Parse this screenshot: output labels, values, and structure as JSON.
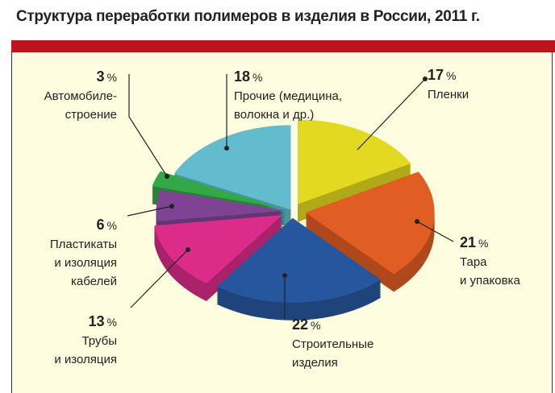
{
  "chart_data": {
    "type": "pie",
    "title": "Структура переработки полимеров в изделия в России, 2011 г.",
    "unit": "%",
    "slices": [
      {
        "label": [
          "Пленки"
        ],
        "value": 17,
        "color": "#e2d920"
      },
      {
        "label": [
          "Тара",
          "и упаковка"
        ],
        "value": 21,
        "color": "#e05e24"
      },
      {
        "label": [
          "Строительные",
          "изделия"
        ],
        "value": 22,
        "color": "#26579e"
      },
      {
        "label": [
          "Трубы",
          "и изоляция"
        ],
        "value": 13,
        "color": "#da2c88"
      },
      {
        "label": [
          "Пластикаты",
          "и изоляция",
          "кабелей"
        ],
        "value": 6,
        "color": "#7e4493"
      },
      {
        "label": [
          "Автомобиле-",
          "строение"
        ],
        "value": 3,
        "color": "#33a846"
      },
      {
        "label": [
          "Прочие (медицина,",
          "волокна и др.)"
        ],
        "value": 18,
        "color": "#62bccd"
      }
    ]
  }
}
